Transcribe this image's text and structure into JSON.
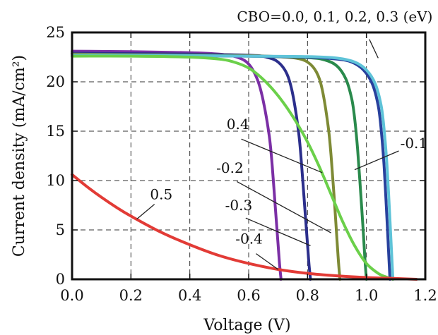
{
  "chart_data": {
    "type": "line",
    "title": "",
    "xlabel": "Voltage (V)",
    "ylabel": "Current density (mA/cm²)",
    "xlim": [
      0.0,
      1.2
    ],
    "ylim": [
      0,
      25
    ],
    "xticks": [
      "0.0",
      "0.2",
      "0.4",
      "0.6",
      "0.8",
      "1.0",
      "1.2"
    ],
    "yticks": [
      "0",
      "5",
      "10",
      "15",
      "20",
      "25"
    ],
    "grid": true,
    "series": [
      {
        "name": "-0.4",
        "color": "#7b2fa5",
        "jsc": 23.1,
        "voc": 0.71,
        "x": [
          0.0,
          0.2,
          0.4,
          0.5,
          0.56,
          0.6,
          0.63,
          0.65,
          0.67,
          0.68,
          0.69,
          0.7,
          0.705,
          0.71
        ],
        "y": [
          23.1,
          23.05,
          22.95,
          22.8,
          22.5,
          21.8,
          20.2,
          18.0,
          14.5,
          11.5,
          7.5,
          3.5,
          1.5,
          0.0
        ]
      },
      {
        "name": "-0.3",
        "color": "#2c2f8c",
        "jsc": 22.9,
        "voc": 0.81,
        "x": [
          0.0,
          0.2,
          0.4,
          0.6,
          0.66,
          0.7,
          0.73,
          0.75,
          0.77,
          0.78,
          0.79,
          0.8,
          0.805,
          0.81
        ],
        "y": [
          22.9,
          22.85,
          22.8,
          22.7,
          22.5,
          22.0,
          20.8,
          18.7,
          14.8,
          11.5,
          7.5,
          3.5,
          1.5,
          0.0
        ]
      },
      {
        "name": "-0.2",
        "color": "#7e8a35",
        "jsc": 22.8,
        "voc": 0.91,
        "x": [
          0.0,
          0.2,
          0.4,
          0.6,
          0.7,
          0.76,
          0.8,
          0.83,
          0.85,
          0.87,
          0.88,
          0.89,
          0.9,
          0.905,
          0.91
        ],
        "y": [
          22.8,
          22.75,
          22.7,
          22.65,
          22.55,
          22.4,
          22.0,
          21.0,
          19.2,
          15.5,
          12.5,
          8.5,
          4.0,
          1.8,
          0.0
        ]
      },
      {
        "name": "-0.1",
        "color": "#2a8a4c",
        "jsc": 22.7,
        "voc": 1.0,
        "x": [
          0.0,
          0.2,
          0.4,
          0.6,
          0.8,
          0.86,
          0.9,
          0.93,
          0.95,
          0.96,
          0.97,
          0.98,
          0.99,
          0.995,
          1.0
        ],
        "y": [
          22.7,
          22.7,
          22.65,
          22.6,
          22.45,
          22.2,
          21.6,
          20.3,
          18.3,
          16.3,
          13.2,
          9.0,
          4.5,
          2.0,
          0.0
        ]
      },
      {
        "name": "0.0, 0.1, 0.2, 0.3",
        "color": "#28419d",
        "jsc": 22.7,
        "voc": 1.08,
        "x": [
          0.0,
          0.2,
          0.4,
          0.6,
          0.8,
          0.9,
          0.95,
          0.99,
          1.02,
          1.04,
          1.05,
          1.06,
          1.07,
          1.075,
          1.08
        ],
        "y": [
          22.7,
          22.7,
          22.65,
          22.6,
          22.5,
          22.3,
          22.0,
          21.2,
          19.8,
          17.6,
          15.2,
          11.5,
          6.0,
          3.0,
          0.0
        ]
      },
      {
        "name": "0.0, 0.1, 0.2, 0.3",
        "color": "#5ec3d8",
        "jsc": 22.7,
        "voc": 1.09,
        "x": [
          0.0,
          0.2,
          0.4,
          0.6,
          0.8,
          0.9,
          0.96,
          1.0,
          1.03,
          1.05,
          1.06,
          1.07,
          1.08,
          1.085,
          1.09
        ],
        "y": [
          22.7,
          22.7,
          22.65,
          22.6,
          22.55,
          22.4,
          22.0,
          21.2,
          19.8,
          17.6,
          15.2,
          11.5,
          6.0,
          3.0,
          0.0
        ]
      },
      {
        "name": "0.4",
        "color": "#6bd04a",
        "jsc": 22.6,
        "voc": 1.09,
        "x": [
          0.0,
          0.2,
          0.4,
          0.5,
          0.55,
          0.6,
          0.64,
          0.68,
          0.72,
          0.76,
          0.8,
          0.84,
          0.88,
          0.92,
          0.96,
          1.0,
          1.04,
          1.07,
          1.09
        ],
        "y": [
          22.6,
          22.6,
          22.5,
          22.3,
          22.0,
          21.4,
          20.5,
          19.3,
          17.8,
          16.0,
          13.9,
          11.4,
          8.6,
          5.8,
          3.4,
          1.6,
          0.6,
          0.2,
          0.0
        ]
      },
      {
        "name": "0.5",
        "color": "#e23b36",
        "jsc": 10.6,
        "voc": 1.17,
        "x": [
          0.0,
          0.05,
          0.1,
          0.15,
          0.2,
          0.3,
          0.4,
          0.5,
          0.6,
          0.7,
          0.8,
          0.9,
          1.0,
          1.1,
          1.17
        ],
        "y": [
          10.6,
          9.4,
          8.3,
          7.3,
          6.4,
          4.8,
          3.5,
          2.4,
          1.6,
          1.0,
          0.6,
          0.35,
          0.18,
          0.08,
          0.0
        ]
      }
    ],
    "annotations": [
      {
        "text": "CBO=0.0, 0.1, 0.2, 0.3 (eV)",
        "tx": 0.56,
        "ty": 26.1,
        "ax": 1.01,
        "ay": 24.3,
        "bx": 1.04,
        "by": 22.4,
        "anchor": "start"
      },
      {
        "text": "0.4",
        "tx": 0.525,
        "ty": 15.2,
        "ax": 0.575,
        "ay": 14.2,
        "bx": 0.85,
        "by": 10.8,
        "anchor": "start"
      },
      {
        "text": "-0.2",
        "tx": 0.49,
        "ty": 10.8,
        "ax": 0.56,
        "ay": 9.9,
        "bx": 0.88,
        "by": 4.7,
        "anchor": "start"
      },
      {
        "text": "-0.3",
        "tx": 0.52,
        "ty": 7.0,
        "ax": 0.59,
        "ay": 6.2,
        "bx": 0.81,
        "by": 3.4,
        "anchor": "start"
      },
      {
        "text": "-0.4",
        "tx": 0.555,
        "ty": 3.6,
        "ax": 0.625,
        "ay": 2.6,
        "bx": 0.7,
        "by": 1.0,
        "anchor": "start"
      },
      {
        "text": "-0.1",
        "tx": 1.115,
        "ty": 13.3,
        "ax": 1.11,
        "ay": 13.0,
        "bx": 0.96,
        "by": 11.1,
        "anchor": "start"
      },
      {
        "text": "0.5",
        "tx": 0.265,
        "ty": 8.1,
        "ax": 0.28,
        "ay": 7.6,
        "bx": 0.22,
        "by": 6.1,
        "anchor": "start"
      }
    ]
  }
}
